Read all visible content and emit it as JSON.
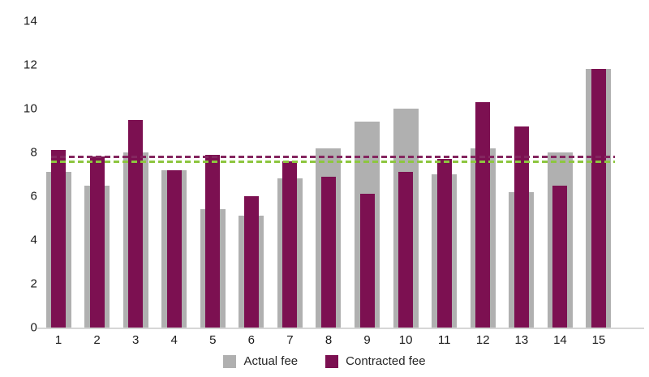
{
  "chart_data": {
    "type": "bar",
    "title": "",
    "xlabel": "",
    "ylabel": "",
    "categories": [
      "1",
      "2",
      "3",
      "4",
      "5",
      "6",
      "7",
      "8",
      "9",
      "10",
      "11",
      "12",
      "13",
      "14",
      "15"
    ],
    "series": [
      {
        "name": "Actual fee",
        "color": "#b0b0b0",
        "values": [
          7.1,
          6.5,
          8.0,
          7.2,
          5.4,
          5.1,
          6.8,
          8.2,
          9.4,
          10.0,
          7.0,
          8.2,
          6.2,
          8.0,
          11.8
        ]
      },
      {
        "name": "Contracted fee",
        "color": "#7c1051",
        "values": [
          8.1,
          7.8,
          9.5,
          7.2,
          7.9,
          6.0,
          7.6,
          6.9,
          6.1,
          7.1,
          7.7,
          10.3,
          9.2,
          6.5,
          11.8
        ]
      }
    ],
    "reference_lines": [
      {
        "value": 7.8,
        "color": "#84265f",
        "style": "dashed"
      },
      {
        "value": 7.6,
        "color": "#8dc63f",
        "style": "dashed"
      }
    ],
    "ylim": [
      0,
      14
    ],
    "yticks": [
      0,
      2,
      4,
      6,
      8,
      10,
      12,
      14
    ],
    "grid": false,
    "legend_position": "bottom"
  },
  "legend": {
    "items": [
      {
        "label": "Actual fee"
      },
      {
        "label": "Contracted fee"
      }
    ]
  }
}
